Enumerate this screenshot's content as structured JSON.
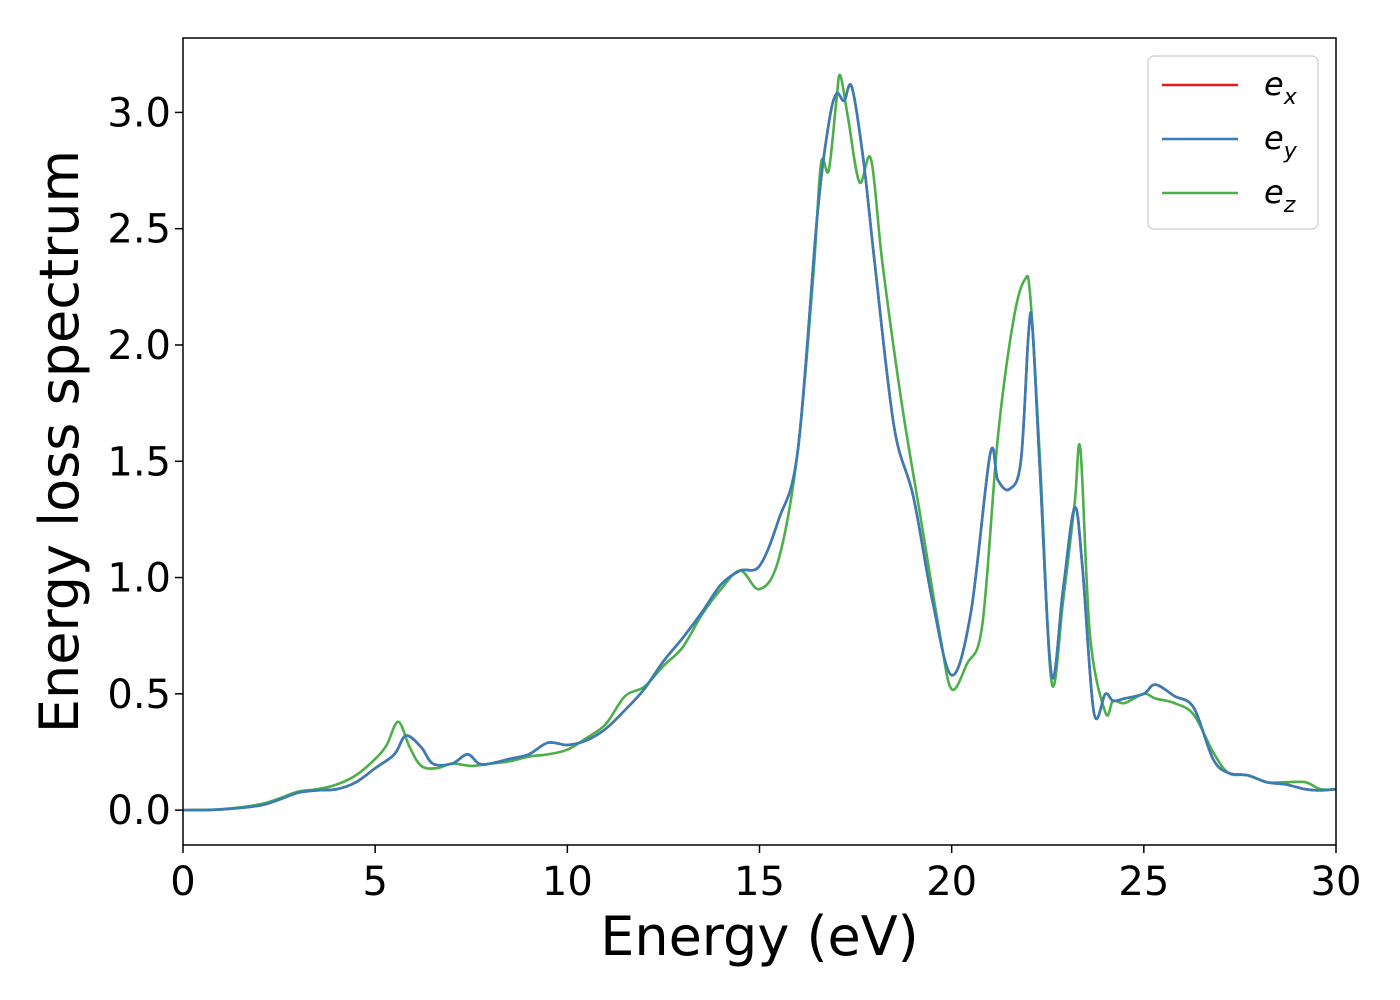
{
  "chart_data": {
    "type": "line",
    "title": "",
    "xlabel": "Energy (eV)",
    "ylabel": "Energy loss spectrum",
    "xlim": [
      0,
      30
    ],
    "ylim": [
      -0.15,
      3.32
    ],
    "xticks": [
      0,
      5,
      10,
      15,
      20,
      25,
      30
    ],
    "xtick_labels": [
      "0",
      "5",
      "10",
      "15",
      "20",
      "25",
      "30"
    ],
    "yticks": [
      0.0,
      0.5,
      1.0,
      1.5,
      2.0,
      2.5,
      3.0
    ],
    "ytick_labels": [
      "0.0",
      "0.5",
      "1.0",
      "1.5",
      "2.0",
      "2.5",
      "3.0"
    ],
    "grid": false,
    "legend_position": "top-right",
    "series": [
      {
        "name": "e_x",
        "legend_base": "e",
        "legend_sub": "x",
        "color": "#e41a1c",
        "x": [
          0,
          1,
          2,
          2.5,
          3,
          3.5,
          4,
          4.5,
          5,
          5.5,
          5.8,
          6.2,
          6.5,
          7,
          7.4,
          7.7,
          8,
          8.5,
          9,
          9.5,
          10,
          10.5,
          11,
          11.5,
          12,
          12.5,
          13,
          13.5,
          14,
          14.5,
          15,
          15.5,
          16,
          16.5,
          16.8,
          17,
          17.2,
          17.4,
          17.7,
          18,
          18.5,
          19,
          19.5,
          20,
          20.5,
          21,
          21.2,
          21.5,
          21.8,
          22,
          22.1,
          22.3,
          22.6,
          22.9,
          23.2,
          23.4,
          23.7,
          24,
          24.2,
          24.5,
          25,
          25.3,
          25.8,
          26.3,
          26.8,
          27.2,
          27.7,
          28.2,
          28.7,
          29.2,
          29.6,
          30
        ],
        "y": [
          0,
          0.003,
          0.02,
          0.045,
          0.075,
          0.085,
          0.09,
          0.12,
          0.18,
          0.24,
          0.32,
          0.27,
          0.2,
          0.2,
          0.24,
          0.2,
          0.2,
          0.22,
          0.24,
          0.29,
          0.28,
          0.3,
          0.35,
          0.43,
          0.52,
          0.64,
          0.74,
          0.85,
          0.97,
          1.03,
          1.05,
          1.25,
          1.55,
          2.55,
          2.95,
          3.08,
          3.05,
          3.11,
          2.8,
          2.35,
          1.65,
          1.35,
          0.9,
          0.58,
          0.85,
          1.53,
          1.42,
          1.38,
          1.5,
          2.05,
          2.08,
          1.45,
          0.58,
          0.95,
          1.3,
          1.05,
          0.42,
          0.5,
          0.47,
          0.48,
          0.5,
          0.54,
          0.49,
          0.44,
          0.22,
          0.16,
          0.15,
          0.12,
          0.11,
          0.09,
          0.085,
          0.09
        ]
      },
      {
        "name": "e_y",
        "legend_base": "e",
        "legend_sub": "y",
        "color": "#377eb8",
        "x": [
          0,
          1,
          2,
          2.5,
          3,
          3.5,
          4,
          4.5,
          5,
          5.5,
          5.8,
          6.2,
          6.5,
          7,
          7.4,
          7.7,
          8,
          8.5,
          9,
          9.5,
          10,
          10.5,
          11,
          11.5,
          12,
          12.5,
          13,
          13.5,
          14,
          14.5,
          15,
          15.5,
          16,
          16.5,
          16.8,
          17,
          17.2,
          17.4,
          17.7,
          18,
          18.5,
          19,
          19.5,
          20,
          20.5,
          21,
          21.2,
          21.5,
          21.8,
          22,
          22.1,
          22.3,
          22.6,
          22.9,
          23.2,
          23.4,
          23.7,
          24,
          24.2,
          24.5,
          25,
          25.3,
          25.8,
          26.3,
          26.8,
          27.2,
          27.7,
          28.2,
          28.7,
          29.2,
          29.6,
          30
        ],
        "y": [
          0,
          0.003,
          0.02,
          0.045,
          0.075,
          0.085,
          0.09,
          0.12,
          0.18,
          0.24,
          0.32,
          0.27,
          0.2,
          0.2,
          0.24,
          0.2,
          0.2,
          0.22,
          0.24,
          0.29,
          0.28,
          0.3,
          0.35,
          0.43,
          0.52,
          0.64,
          0.74,
          0.85,
          0.97,
          1.03,
          1.05,
          1.25,
          1.55,
          2.55,
          2.95,
          3.08,
          3.05,
          3.11,
          2.8,
          2.35,
          1.65,
          1.35,
          0.9,
          0.58,
          0.85,
          1.53,
          1.42,
          1.38,
          1.5,
          2.05,
          2.08,
          1.45,
          0.58,
          0.95,
          1.3,
          1.05,
          0.42,
          0.5,
          0.47,
          0.48,
          0.5,
          0.54,
          0.49,
          0.44,
          0.22,
          0.16,
          0.15,
          0.12,
          0.11,
          0.09,
          0.085,
          0.09
        ]
      },
      {
        "name": "e_z",
        "legend_base": "e",
        "legend_sub": "z",
        "color": "#4daf4a",
        "x": [
          0,
          1,
          2,
          2.5,
          3,
          3.5,
          4,
          4.5,
          5,
          5.3,
          5.6,
          5.9,
          6.2,
          6.6,
          7,
          7.5,
          8,
          8.5,
          9,
          9.5,
          10,
          10.5,
          11,
          11.5,
          12,
          12.5,
          13,
          13.5,
          14,
          14.5,
          15,
          15.5,
          16,
          16.4,
          16.6,
          16.8,
          17,
          17.1,
          17.3,
          17.6,
          17.9,
          18.2,
          18.7,
          19.2,
          19.7,
          20,
          20.4,
          20.8,
          21.2,
          21.6,
          21.9,
          22.05,
          22.3,
          22.6,
          22.9,
          23.2,
          23.35,
          23.6,
          24,
          24.2,
          24.5,
          25,
          25.3,
          25.8,
          26.3,
          26.8,
          27.2,
          27.7,
          28.2,
          28.7,
          29.2,
          29.6,
          30
        ],
        "y": [
          0,
          0.004,
          0.025,
          0.05,
          0.08,
          0.09,
          0.11,
          0.15,
          0.22,
          0.28,
          0.38,
          0.27,
          0.19,
          0.18,
          0.2,
          0.19,
          0.2,
          0.21,
          0.23,
          0.24,
          0.26,
          0.31,
          0.37,
          0.49,
          0.53,
          0.62,
          0.7,
          0.84,
          0.95,
          1.03,
          0.95,
          1.08,
          1.55,
          2.3,
          2.78,
          2.75,
          3.05,
          3.16,
          2.98,
          2.7,
          2.8,
          2.35,
          1.75,
          1.25,
          0.75,
          0.52,
          0.63,
          0.8,
          1.6,
          2.1,
          2.28,
          2.2,
          1.5,
          0.55,
          0.9,
          1.32,
          1.55,
          0.75,
          0.42,
          0.47,
          0.46,
          0.5,
          0.48,
          0.46,
          0.41,
          0.25,
          0.16,
          0.15,
          0.12,
          0.12,
          0.12,
          0.09,
          0.09
        ]
      }
    ]
  }
}
